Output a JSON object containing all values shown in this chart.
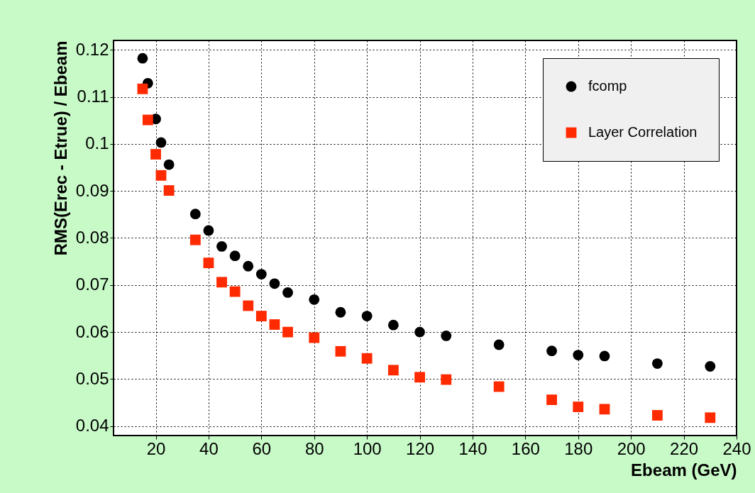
{
  "chart_data": {
    "type": "scatter",
    "xlabel": "Ebeam (GeV)",
    "ylabel": "RMS(Erec - Etrue) / Ebeam",
    "xlim": [
      4,
      240
    ],
    "xticks": [
      20,
      40,
      60,
      80,
      100,
      120,
      140,
      160,
      180,
      200,
      220,
      240
    ],
    "ylim": [
      0.038,
      0.122
    ],
    "yticks": [
      0.04,
      0.05,
      0.06,
      0.07,
      0.08,
      0.09,
      0.1,
      0.11,
      0.12
    ],
    "grid": true,
    "legend": "top right",
    "x": [
      15,
      17,
      20,
      22,
      25,
      35,
      40,
      45,
      50,
      55,
      60,
      65,
      70,
      80,
      90,
      100,
      110,
      120,
      130,
      150,
      170,
      180,
      190,
      210,
      230
    ],
    "series": [
      {
        "name": "fcomp",
        "color": "#000000",
        "marker": "circle",
        "values": [
          0.1182,
          0.1129,
          0.1053,
          0.1003,
          0.0956,
          0.0851,
          0.0816,
          0.0782,
          0.0762,
          0.074,
          0.0723,
          0.0703,
          0.0684,
          0.0669,
          0.0642,
          0.0634,
          0.0615,
          0.06,
          0.0592,
          0.0573,
          0.056,
          0.0551,
          0.0549,
          0.0533,
          0.0527
        ]
      },
      {
        "name": "Layer Correlation",
        "color": "#ff2a00",
        "marker": "square",
        "values": [
          0.1117,
          0.1051,
          0.0978,
          0.0933,
          0.0901,
          0.0796,
          0.0747,
          0.0706,
          0.0686,
          0.0656,
          0.0634,
          0.0616,
          0.06,
          0.0588,
          0.0559,
          0.0544,
          0.0519,
          0.0504,
          0.0499,
          0.0484,
          0.0456,
          0.0441,
          0.0436,
          0.0423,
          0.0418
        ]
      }
    ]
  }
}
